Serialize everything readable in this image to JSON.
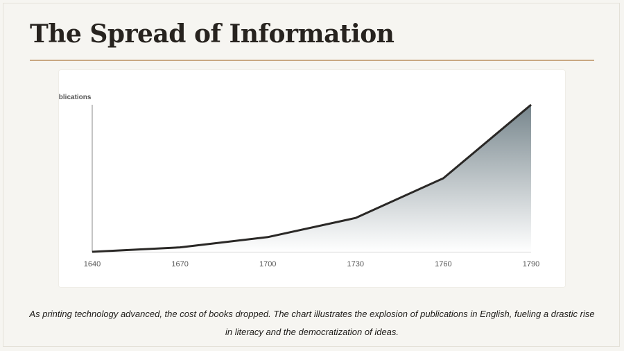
{
  "slide": {
    "title": "The Spread of Information",
    "caption": "As printing technology advanced, the cost of books dropped. The chart illustrates the explosion of publications in English, fueling a drastic rise in literacy and the democratization of ideas."
  },
  "colors": {
    "background": "#f6f5f1",
    "accent_rule": "#c9a882",
    "line": "#2a2826",
    "fill_top": "#6f7f86",
    "fill_bottom": "#ffffff"
  },
  "chart_data": {
    "type": "area",
    "title": "",
    "ylabel": "Publications",
    "xlabel": "",
    "x": [
      1640,
      1670,
      1700,
      1730,
      1760,
      1790
    ],
    "tick_labels": [
      "1640",
      "1670",
      "1700",
      "1730",
      "1760",
      "1790"
    ],
    "series": [
      {
        "values": [
          0,
          3,
          10,
          23,
          50,
          100
        ]
      }
    ],
    "ylim": [
      0,
      100
    ],
    "y_ticks_shown": false,
    "grid": false,
    "legend": "none"
  }
}
